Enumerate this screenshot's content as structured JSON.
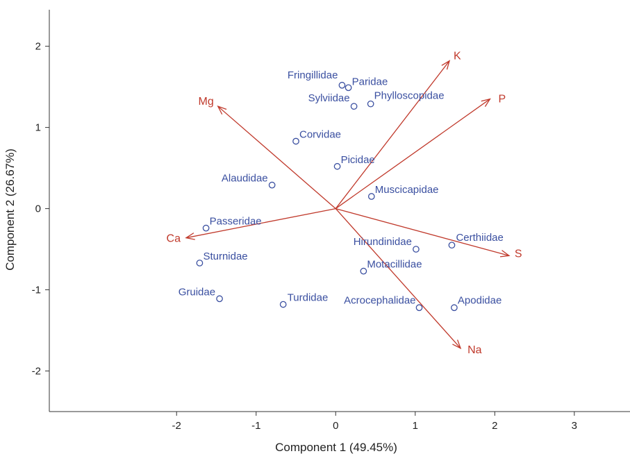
{
  "chart_data": {
    "type": "scatter",
    "subtype": "biplot",
    "title": "",
    "xlabel": "Component 1 (49.45%)",
    "ylabel": "Component 2 (26.67%)",
    "xlim": [
      -3.6,
      3.7
    ],
    "ylim": [
      -2.5,
      2.45
    ],
    "xticks": [
      -2,
      -1,
      0,
      1,
      2,
      3
    ],
    "yticks": [
      -2,
      -1,
      0,
      1,
      2
    ],
    "grid": false,
    "legend": "none",
    "colors": {
      "points": "#3a4fa0",
      "vectors": "#c0392b",
      "axis": "#333333"
    },
    "points": [
      {
        "label": "Fringillidae",
        "x": 0.08,
        "y": 1.52
      },
      {
        "label": "Paridae",
        "x": 0.16,
        "y": 1.49
      },
      {
        "label": "Sylviidae",
        "x": 0.23,
        "y": 1.26
      },
      {
        "label": "Phylloscopidae",
        "x": 0.44,
        "y": 1.29
      },
      {
        "label": "Corvidae",
        "x": -0.5,
        "y": 0.83
      },
      {
        "label": "Picidae",
        "x": 0.02,
        "y": 0.52
      },
      {
        "label": "Alaudidae",
        "x": -0.8,
        "y": 0.29
      },
      {
        "label": "Muscicapidae",
        "x": 0.45,
        "y": 0.15
      },
      {
        "label": "Passeridae",
        "x": -1.63,
        "y": -0.24
      },
      {
        "label": "Certhiidae",
        "x": 1.46,
        "y": -0.45
      },
      {
        "label": "Hirundinidae",
        "x": 1.01,
        "y": -0.5
      },
      {
        "label": "Sturnidae",
        "x": -1.71,
        "y": -0.67
      },
      {
        "label": "Motacillidae",
        "x": 0.35,
        "y": -0.77
      },
      {
        "label": "Gruidae",
        "x": -1.46,
        "y": -1.11
      },
      {
        "label": "Turdidae",
        "x": -0.66,
        "y": -1.18
      },
      {
        "label": "Acrocephalidae",
        "x": 1.05,
        "y": -1.22
      },
      {
        "label": "Apodidae",
        "x": 1.49,
        "y": -1.22
      }
    ],
    "vectors": [
      {
        "label": "K",
        "x": 1.43,
        "y": 1.82
      },
      {
        "label": "P",
        "x": 1.94,
        "y": 1.35
      },
      {
        "label": "Mg",
        "x": -1.48,
        "y": 1.26
      },
      {
        "label": "Ca",
        "x": -1.88,
        "y": -0.36
      },
      {
        "label": "S",
        "x": 2.18,
        "y": -0.58
      },
      {
        "label": "Na",
        "x": 1.57,
        "y": -1.72
      }
    ]
  }
}
